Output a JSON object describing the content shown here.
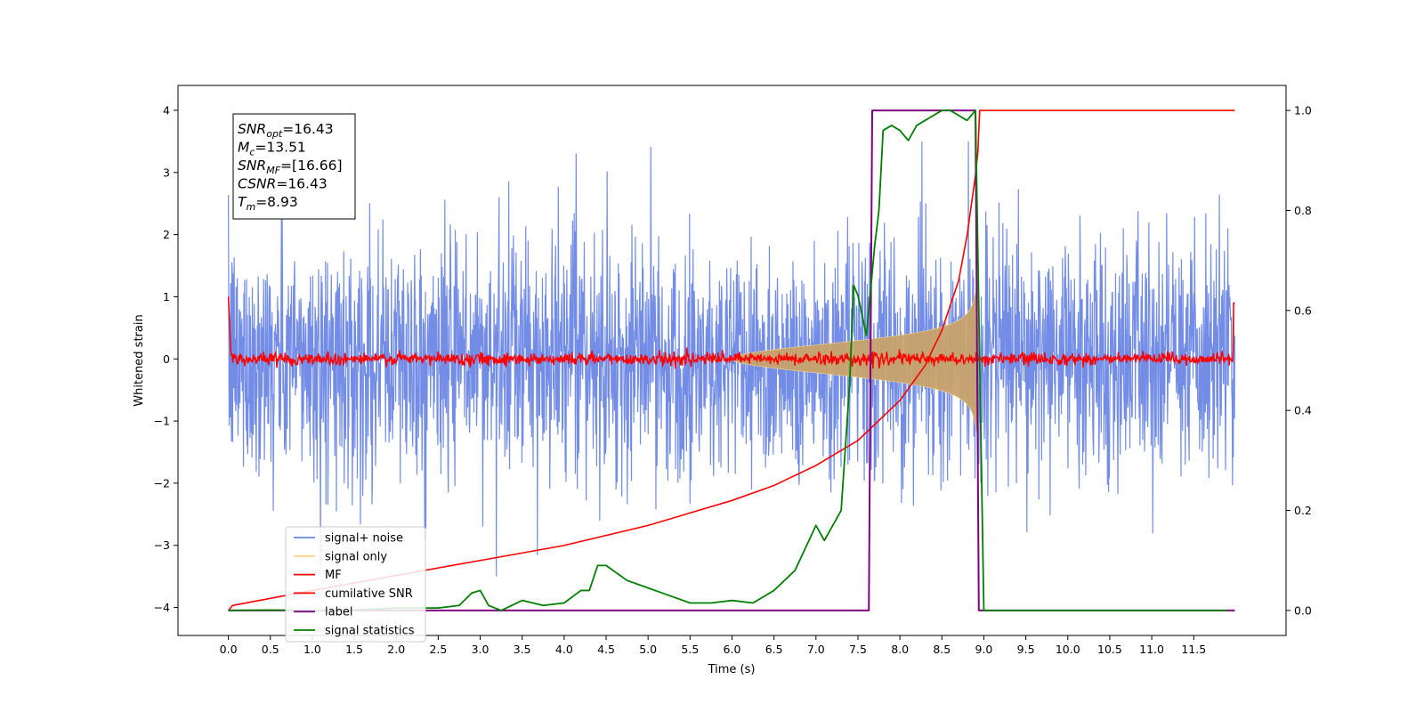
{
  "chart_data": {
    "type": "line",
    "xlabel": "Time (s)",
    "ylabel": "Whitened strain",
    "x_ticks": [
      0.0,
      0.5,
      1.0,
      1.5,
      2.0,
      2.5,
      3.0,
      3.5,
      4.0,
      4.5,
      5.0,
      5.5,
      6.0,
      6.5,
      7.0,
      7.5,
      8.0,
      8.5,
      9.0,
      9.5,
      10.0,
      10.5,
      11.0,
      11.5
    ],
    "x_tick_labels": [
      "0.0",
      "0.5",
      "1.0",
      "1.5",
      "2.0",
      "2.5",
      "3.0",
      "3.5",
      "4.0",
      "4.5",
      "5.0",
      "5.5",
      "6.0",
      "6.5",
      "7.0",
      "7.5",
      "8.0",
      "8.5",
      "9.0",
      "9.5",
      "10.0",
      "10.5",
      "11.0",
      "11.5"
    ],
    "xlim": [
      -0.6,
      12.6
    ],
    "ylim_left": [
      -4.45,
      4.4
    ],
    "y_ticks_left": [
      4,
      3,
      2,
      1,
      0,
      -1,
      -2,
      -3,
      -4
    ],
    "y_tick_labels_left": [
      "4",
      "3",
      "2",
      "1",
      "0",
      "−1",
      "−2",
      "−3",
      "−4"
    ],
    "ylim_right": [
      -0.05,
      1.05
    ],
    "y_ticks_right": [
      1.0,
      0.8,
      0.6,
      0.4,
      0.2,
      0.0
    ],
    "y_tick_labels_right": [
      "1.0",
      "0.8",
      "0.6",
      "0.4",
      "0.2",
      "0.0"
    ],
    "grid": false,
    "legend_placement": "lower-left",
    "legend": [
      {
        "label": "signal+ noise",
        "color": "#6b87e6"
      },
      {
        "label": "signal only",
        "color": "#fdd38a"
      },
      {
        "label": "MF",
        "color": "#ff0000"
      },
      {
        "label": "cumilative SNR",
        "color": "#ff0000"
      },
      {
        "label": "label",
        "color": "#800080"
      },
      {
        "label": "signal statistics",
        "color": "#008000"
      }
    ],
    "annotation": [
      {
        "base": "SNR",
        "sub": "opt",
        "value": "=16.43"
      },
      {
        "base": "M",
        "sub": "c",
        "value": "=13.51"
      },
      {
        "base": "SNR",
        "sub": "MF",
        "value": "=[16.66]"
      },
      {
        "base": "CSNR",
        "sub": "",
        "value": "=16.43"
      },
      {
        "base": "T",
        "sub": "m",
        "value": "=8.93"
      }
    ],
    "series": [
      {
        "name": "signal+ noise",
        "axis": "left",
        "color": "#6b87e6",
        "description": "whitened noise, typical range -2.5 to 2.5, spikes to about 3.5"
      },
      {
        "name": "signal only",
        "axis": "left",
        "color": "#fdd38a",
        "chirp_start": 6.0,
        "chirp_end": 8.93,
        "peak_amplitude": 1.2
      },
      {
        "name": "MF",
        "axis": "left",
        "color": "#ff0000",
        "description": "matched-filter output near 0 with small noise"
      },
      {
        "name": "cumilative SNR",
        "axis": "right",
        "color": "#ff0000",
        "x": [
          0.0,
          0.05,
          1.0,
          2.0,
          3.0,
          4.0,
          5.0,
          6.0,
          6.5,
          7.0,
          7.5,
          8.0,
          8.3,
          8.5,
          8.7,
          8.8,
          8.9,
          8.93,
          8.95,
          11.99
        ],
        "y": [
          0.0,
          0.01,
          0.04,
          0.07,
          0.1,
          0.13,
          0.17,
          0.22,
          0.25,
          0.29,
          0.34,
          0.42,
          0.49,
          0.56,
          0.66,
          0.75,
          0.87,
          0.92,
          1.0,
          1.0
        ]
      },
      {
        "name": "label",
        "axis": "right",
        "color": "#800080",
        "x": [
          0.0,
          7.63,
          7.67,
          8.9,
          8.94,
          11.99
        ],
        "y": [
          0.0,
          0.0,
          1.0,
          1.0,
          0.0,
          0.0
        ]
      },
      {
        "name": "signal statistics",
        "axis": "right",
        "color": "#008000",
        "x": [
          0.0,
          0.5,
          1.0,
          1.5,
          2.0,
          2.5,
          2.75,
          2.9,
          3.0,
          3.1,
          3.25,
          3.5,
          3.75,
          4.0,
          4.2,
          4.3,
          4.4,
          4.5,
          4.75,
          5.0,
          5.25,
          5.5,
          5.75,
          6.0,
          6.25,
          6.5,
          6.75,
          7.0,
          7.1,
          7.2,
          7.3,
          7.4,
          7.45,
          7.5,
          7.6,
          7.7,
          7.75,
          7.8,
          7.9,
          8.0,
          8.1,
          8.2,
          8.3,
          8.5,
          8.6,
          8.8,
          8.9,
          9.0,
          9.5,
          11.9
        ],
        "y": [
          0.0,
          0.001,
          0.0,
          0.001,
          0.005,
          0.005,
          0.01,
          0.035,
          0.04,
          0.01,
          0.0,
          0.02,
          0.01,
          0.015,
          0.04,
          0.04,
          0.09,
          0.09,
          0.06,
          0.045,
          0.03,
          0.015,
          0.015,
          0.02,
          0.015,
          0.04,
          0.08,
          0.17,
          0.14,
          0.17,
          0.2,
          0.45,
          0.65,
          0.63,
          0.55,
          0.73,
          0.8,
          0.96,
          0.97,
          0.96,
          0.94,
          0.97,
          0.98,
          1.0,
          1.0,
          0.98,
          1.0,
          0.0,
          0.0,
          0.0
        ]
      }
    ]
  }
}
